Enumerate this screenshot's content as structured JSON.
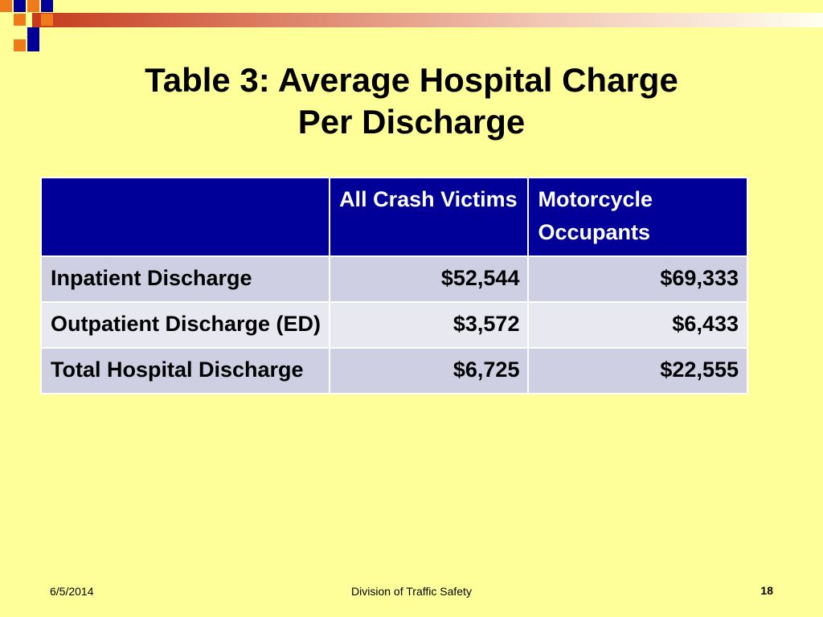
{
  "slide": {
    "title_line1": "Table 3: Average Hospital Charge",
    "title_line2": "Per Discharge"
  },
  "table": {
    "header": [
      "",
      "All Crash Victims",
      "Motorcycle Occupants"
    ],
    "rows": [
      [
        "Inpatient Discharge",
        "$52,544",
        "$69,333"
      ],
      [
        "Outpatient Discharge (ED)",
        "$3,572",
        "$6,433"
      ],
      [
        "Total Hospital Discharge",
        "$6,725",
        "$22,555"
      ]
    ]
  },
  "footer": {
    "date": "6/5/2014",
    "center": "Division of Traffic Safety",
    "page": "18"
  },
  "colors": {
    "background": "#ffff99",
    "header_fill": "#000099",
    "row_fill_dark": "#cfcfe3",
    "row_fill_light": "#e8e8f1",
    "bar_accent": "#c63a1c",
    "square_orange": "#f07b1a",
    "square_navy": "#000099"
  }
}
